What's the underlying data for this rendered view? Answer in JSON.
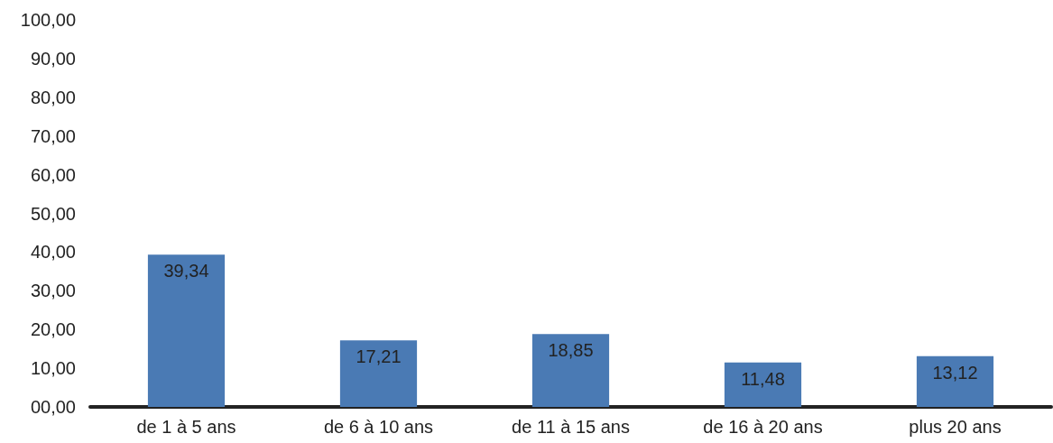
{
  "chart_data": {
    "type": "bar",
    "categories": [
      "de 1 à 5 ans",
      "de 6 à 10 ans",
      "de 11 à 15 ans",
      "de 16 à 20 ans",
      "plus 20 ans"
    ],
    "values": [
      39.34,
      17.21,
      18.85,
      11.48,
      13.12
    ],
    "value_labels": [
      "39,34",
      "17,21",
      "18,85",
      "11,48",
      "13,12"
    ],
    "color": "#4a7ab4",
    "ylim": [
      0,
      100
    ],
    "yticks": [
      {
        "value": 0,
        "label": "00,00"
      },
      {
        "value": 10,
        "label": "10,00"
      },
      {
        "value": 20,
        "label": "20,00"
      },
      {
        "value": 30,
        "label": "30,00"
      },
      {
        "value": 40,
        "label": "40,00"
      },
      {
        "value": 50,
        "label": "50,00"
      },
      {
        "value": 60,
        "label": "60,00"
      },
      {
        "value": 70,
        "label": "70,00"
      },
      {
        "value": 80,
        "label": "80,00"
      },
      {
        "value": 90,
        "label": "90,00"
      },
      {
        "value": 100,
        "label": "100,00"
      }
    ],
    "grid": false
  }
}
